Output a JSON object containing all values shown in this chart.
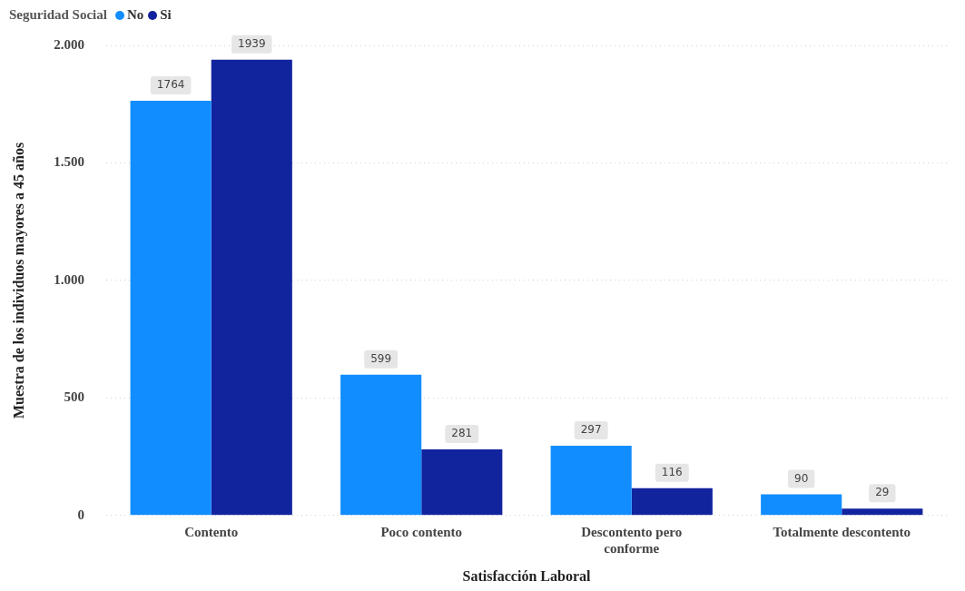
{
  "chart_data": {
    "type": "bar",
    "xlabel": "Satisfacción Laboral",
    "ylabel": "Muestra de los individuos mayores a 45 años",
    "legend_title": "Seguridad Social",
    "categories": [
      "Contento",
      "Poco contento",
      "Descontento pero conforme",
      "Totalmente descontento"
    ],
    "series": [
      {
        "name": "No",
        "color": "#118dff",
        "values": [
          1764,
          599,
          297,
          90
        ]
      },
      {
        "name": "Si",
        "color": "#12239e",
        "values": [
          1939,
          281,
          116,
          29
        ]
      }
    ],
    "ylim": [
      0,
      2000
    ],
    "yticks": [
      {
        "value": 0,
        "label": "0"
      },
      {
        "value": 500,
        "label": "500"
      },
      {
        "value": 1000,
        "label": "1.000"
      },
      {
        "value": 1500,
        "label": "1.500"
      },
      {
        "value": 2000,
        "label": "2.000"
      }
    ],
    "grid": "y",
    "legend": "top left",
    "data_labels": true
  }
}
